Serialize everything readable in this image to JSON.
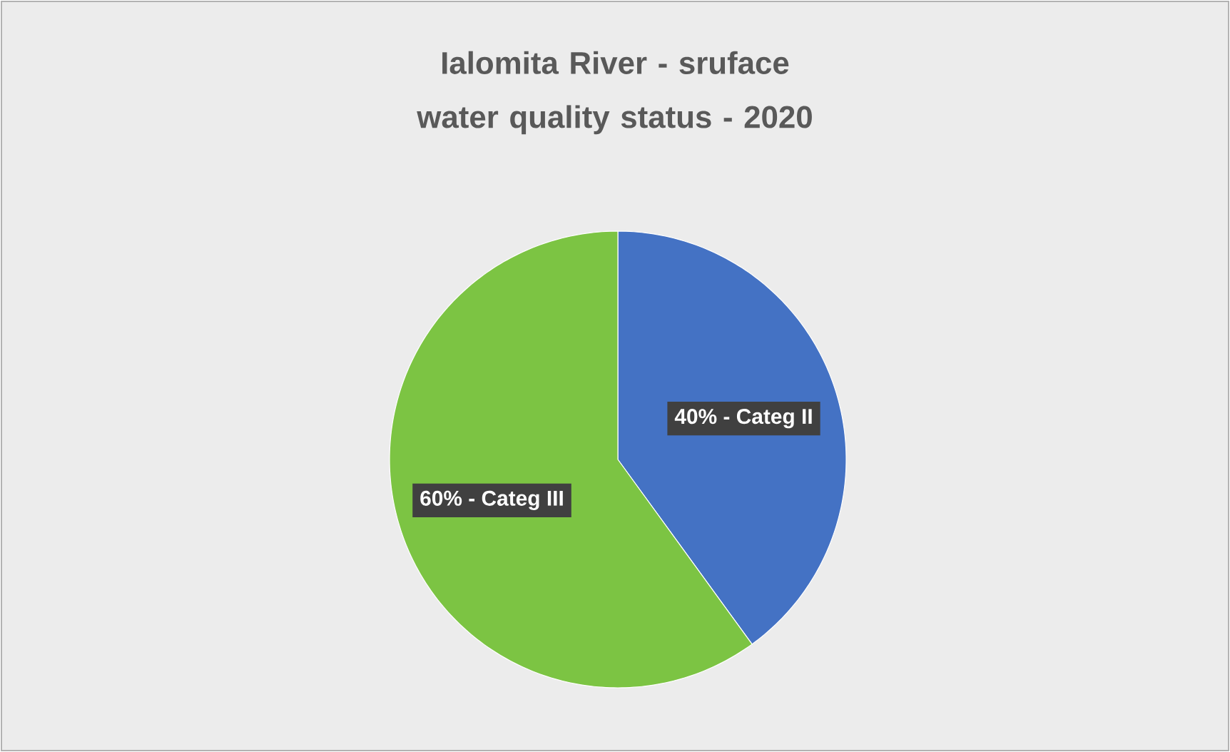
{
  "chart_data": {
    "type": "pie",
    "title": "Ialomita River - sruface water quality status - 2020",
    "categories": [
      "40% - Categ II",
      "60% - Categ III"
    ],
    "values": [
      40,
      60
    ],
    "colors": [
      "#4472c4",
      "#7cc443"
    ]
  }
}
